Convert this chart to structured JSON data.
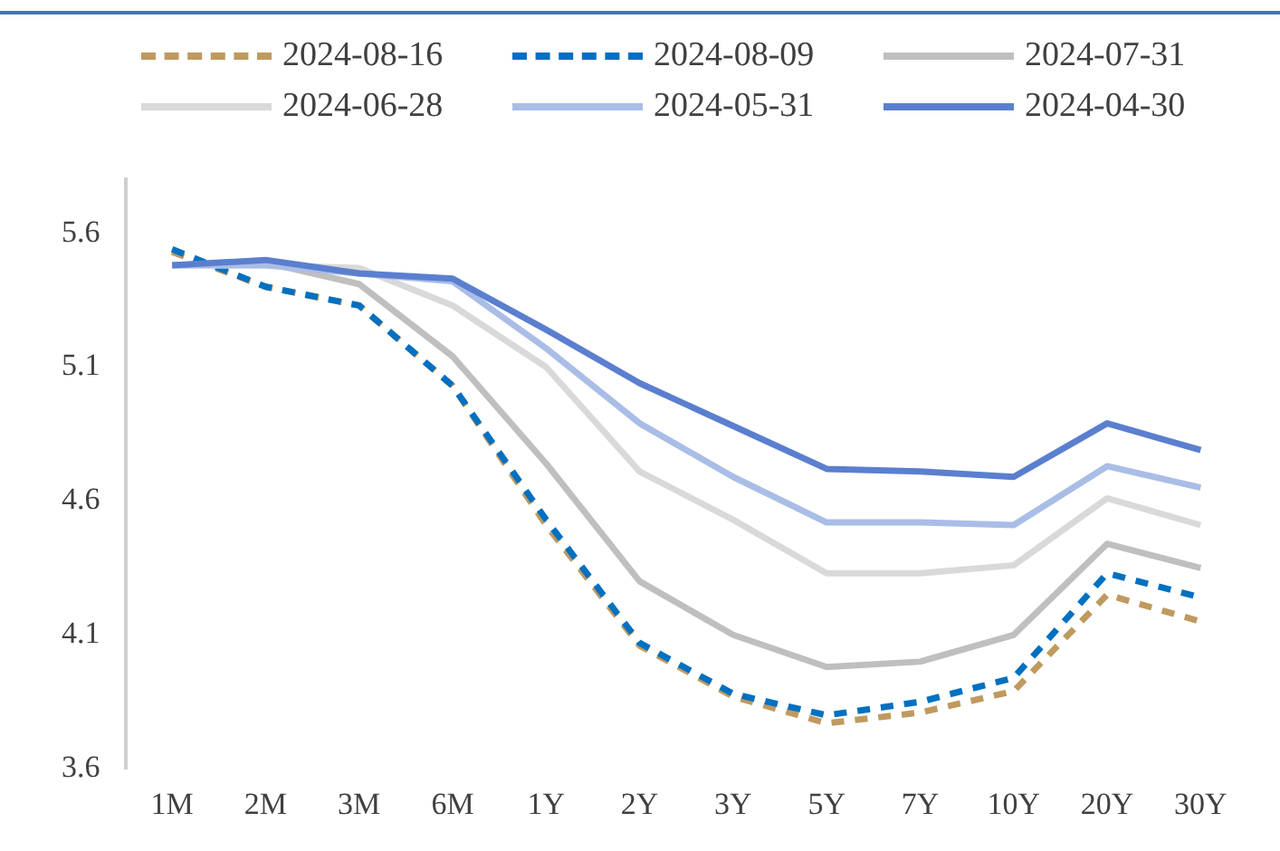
{
  "chart_data": {
    "type": "line",
    "categories": [
      "1M",
      "2M",
      "3M",
      "6M",
      "1Y",
      "2Y",
      "3Y",
      "5Y",
      "7Y",
      "10Y",
      "20Y",
      "30Y"
    ],
    "series": [
      {
        "name": "2024-08-16",
        "color": "#bf9a5f",
        "line_style": "dashed",
        "values": [
          5.53,
          5.4,
          5.33,
          5.03,
          4.51,
          4.06,
          3.87,
          3.77,
          3.81,
          3.89,
          4.25,
          4.15
        ]
      },
      {
        "name": "2024-08-09",
        "color": "#0070c0",
        "line_style": "dashed",
        "values": [
          5.54,
          5.4,
          5.33,
          5.03,
          4.53,
          4.07,
          3.88,
          3.8,
          3.85,
          3.94,
          4.33,
          4.24
        ]
      },
      {
        "name": "2024-07-31",
        "color": "#bfbfbf",
        "line_style": "solid",
        "values": [
          5.48,
          5.49,
          5.41,
          5.14,
          4.74,
          4.3,
          4.1,
          3.98,
          4.0,
          4.1,
          4.44,
          4.35
        ]
      },
      {
        "name": "2024-06-28",
        "color": "#d9d9d9",
        "line_style": "solid",
        "values": [
          5.48,
          5.48,
          5.47,
          5.33,
          5.1,
          4.71,
          4.53,
          4.33,
          4.33,
          4.36,
          4.61,
          4.51
        ]
      },
      {
        "name": "2024-05-31",
        "color": "#a9bde6",
        "line_style": "solid",
        "values": [
          5.48,
          5.48,
          5.45,
          5.42,
          5.17,
          4.89,
          4.69,
          4.52,
          4.52,
          4.51,
          4.73,
          4.65
        ]
      },
      {
        "name": "2024-04-30",
        "color": "#5b7fcf",
        "line_style": "solid",
        "values": [
          5.48,
          5.5,
          5.45,
          5.43,
          5.24,
          5.04,
          4.88,
          4.72,
          4.71,
          4.69,
          4.89,
          4.79
        ]
      }
    ],
    "ylim": [
      3.6,
      5.8
    ],
    "yticks": [
      3.6,
      4.1,
      4.6,
      5.1,
      5.6
    ],
    "grid": false,
    "legend": "top",
    "marker": "none"
  }
}
